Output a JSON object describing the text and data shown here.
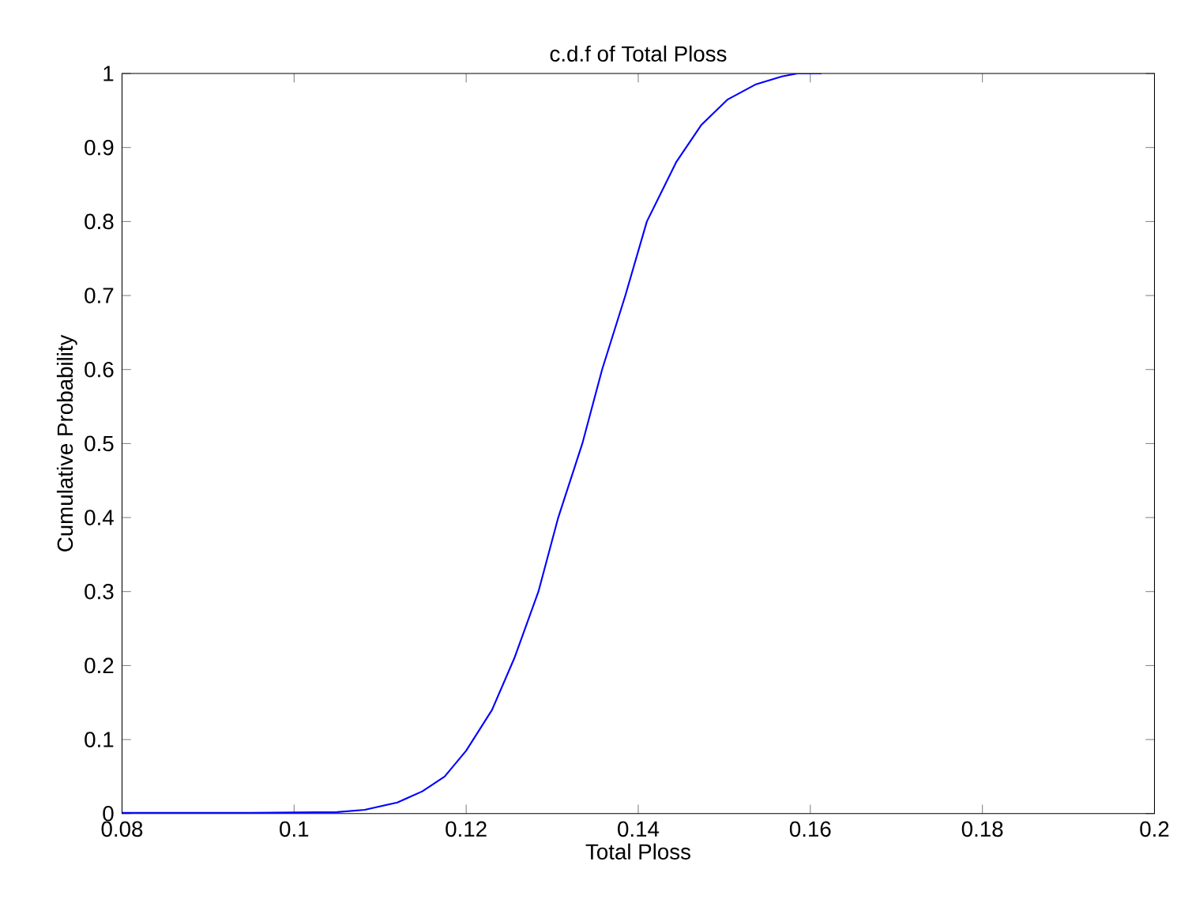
{
  "chart_data": {
    "type": "line",
    "title": "c.d.f of Total Ploss",
    "xlabel": "Total Ploss",
    "ylabel": "Cumulative Probability",
    "x": [
      0.08,
      0.095,
      0.105,
      0.1082,
      0.112,
      0.1149,
      0.1175,
      0.12,
      0.123,
      0.1256,
      0.1284,
      0.1307,
      0.1335,
      0.1358,
      0.1385,
      0.141,
      0.1444,
      0.1473,
      0.1504,
      0.1536,
      0.1567,
      0.1585,
      0.1613
    ],
    "series": [
      {
        "color": "#0000ff",
        "values": [
          0.001,
          0.001,
          0.002,
          0.005,
          0.015,
          0.03,
          0.05,
          0.085,
          0.14,
          0.21,
          0.3,
          0.4,
          0.5,
          0.6,
          0.7,
          0.8,
          0.88,
          0.93,
          0.965,
          0.985,
          0.996,
          1,
          1
        ]
      }
    ],
    "xlim": [
      0.08,
      0.2
    ],
    "ylim": [
      0,
      1
    ],
    "xticks": [
      0.08,
      0.1,
      0.12,
      0.14,
      0.16,
      0.18,
      0.2
    ],
    "yticks": [
      0,
      0.1,
      0.2,
      0.3,
      0.4,
      0.5,
      0.6,
      0.7,
      0.8,
      0.9,
      1
    ],
    "grid": false,
    "marker": "none",
    "line_style": "solid"
  }
}
